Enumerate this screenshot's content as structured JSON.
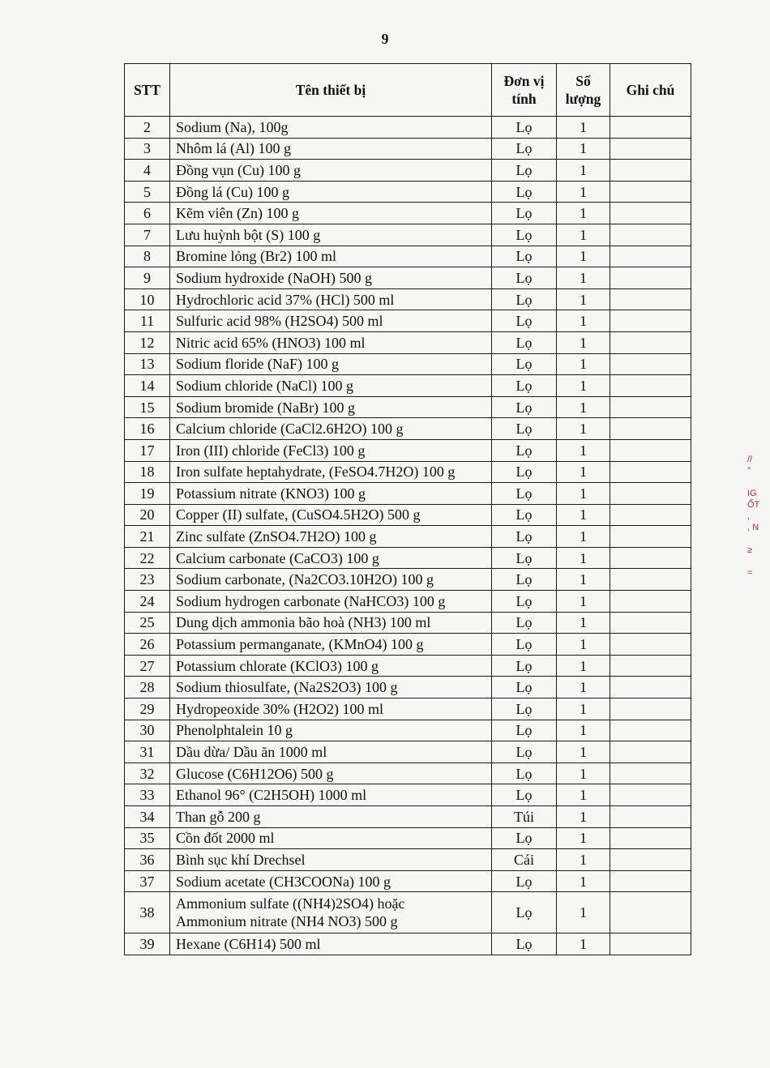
{
  "page_number": "9",
  "table": {
    "headers": {
      "stt": "STT",
      "name": "Tên thiết bị",
      "unit": "Đơn vị tính",
      "qty": "Số lượng",
      "note": "Ghi chú"
    },
    "rows": [
      {
        "stt": "2",
        "name": "Sodium (Na), 100g",
        "unit": "Lọ",
        "qty": "1",
        "note": ""
      },
      {
        "stt": "3",
        "name": "Nhôm lá (Al) 100 g",
        "unit": "Lọ",
        "qty": "1",
        "note": ""
      },
      {
        "stt": "4",
        "name": "Đồng vụn (Cu) 100 g",
        "unit": "Lọ",
        "qty": "1",
        "note": ""
      },
      {
        "stt": "5",
        "name": "Đồng lá (Cu) 100 g",
        "unit": "Lọ",
        "qty": "1",
        "note": ""
      },
      {
        "stt": "6",
        "name": "Kẽm viên (Zn) 100 g",
        "unit": "Lọ",
        "qty": "1",
        "note": ""
      },
      {
        "stt": "7",
        "name": "Lưu huỳnh bột (S) 100 g",
        "unit": "Lọ",
        "qty": "1",
        "note": ""
      },
      {
        "stt": "8",
        "name": "Bromine lỏng (Br2) 100 ml",
        "unit": "Lọ",
        "qty": "1",
        "note": ""
      },
      {
        "stt": "9",
        "name": "Sodium hydroxide (NaOH) 500 g",
        "unit": "Lọ",
        "qty": "1",
        "note": ""
      },
      {
        "stt": "10",
        "name": "Hydrochloric acid 37% (HCl) 500 ml",
        "unit": "Lọ",
        "qty": "1",
        "note": ""
      },
      {
        "stt": "11",
        "name": "Sulfuric acid 98% (H2SO4) 500 ml",
        "unit": "Lọ",
        "qty": "1",
        "note": ""
      },
      {
        "stt": "12",
        "name": "Nitric acid 65% (HNO3) 100 ml",
        "unit": "Lọ",
        "qty": "1",
        "note": ""
      },
      {
        "stt": "13",
        "name": "Sodium floride (NaF) 100 g",
        "unit": "Lọ",
        "qty": "1",
        "note": ""
      },
      {
        "stt": "14",
        "name": "Sodium chloride (NaCl) 100 g",
        "unit": "Lọ",
        "qty": "1",
        "note": ""
      },
      {
        "stt": "15",
        "name": "Sodium bromide (NaBr) 100 g",
        "unit": "Lọ",
        "qty": "1",
        "note": ""
      },
      {
        "stt": "16",
        "name": "Calcium chloride (CaCl2.6H2O) 100 g",
        "unit": "Lọ",
        "qty": "1",
        "note": ""
      },
      {
        "stt": "17",
        "name": "Iron (III) chloride (FeCl3) 100 g",
        "unit": "Lọ",
        "qty": "1",
        "note": ""
      },
      {
        "stt": "18",
        "name": "Iron sulfate heptahydrate, (FeSO4.7H2O) 100 g",
        "unit": "Lọ",
        "qty": "1",
        "note": ""
      },
      {
        "stt": "19",
        "name": "Potassium nitrate (KNO3) 100 g",
        "unit": "Lọ",
        "qty": "1",
        "note": ""
      },
      {
        "stt": "20",
        "name": "Copper (II) sulfate, (CuSO4.5H2O) 500 g",
        "unit": "Lọ",
        "qty": "1",
        "note": ""
      },
      {
        "stt": "21",
        "name": "Zinc sulfate (ZnSO4.7H2O) 100 g",
        "unit": "Lọ",
        "qty": "1",
        "note": ""
      },
      {
        "stt": "22",
        "name": "Calcium carbonate (CaCO3) 100 g",
        "unit": "Lọ",
        "qty": "1",
        "note": ""
      },
      {
        "stt": "23",
        "name": "Sodium carbonate, (Na2CO3.10H2O) 100 g",
        "unit": "Lọ",
        "qty": "1",
        "note": ""
      },
      {
        "stt": "24",
        "name": "Sodium hydrogen carbonate (NaHCO3) 100 g",
        "unit": "Lọ",
        "qty": "1",
        "note": ""
      },
      {
        "stt": "25",
        "name": "Dung dịch ammonia bão hoà (NH3) 100 ml",
        "unit": "Lọ",
        "qty": "1",
        "note": ""
      },
      {
        "stt": "26",
        "name": "Potassium permanganate, (KMnO4) 100 g",
        "unit": "Lọ",
        "qty": "1",
        "note": ""
      },
      {
        "stt": "27",
        "name": "Potassium chlorate (KClO3) 100 g",
        "unit": "Lọ",
        "qty": "1",
        "note": ""
      },
      {
        "stt": "28",
        "name": "Sodium thiosulfate, (Na2S2O3) 100 g",
        "unit": "Lọ",
        "qty": "1",
        "note": ""
      },
      {
        "stt": "29",
        "name": "Hydropeoxide 30% (H2O2) 100 ml",
        "unit": "Lọ",
        "qty": "1",
        "note": ""
      },
      {
        "stt": "30",
        "name": "Phenolphtalein 10 g",
        "unit": "Lọ",
        "qty": "1",
        "note": ""
      },
      {
        "stt": "31",
        "name": "Dầu dừa/ Dầu ăn 1000 ml",
        "unit": "Lọ",
        "qty": "1",
        "note": ""
      },
      {
        "stt": "32",
        "name": "Glucose (C6H12O6) 500 g",
        "unit": "Lọ",
        "qty": "1",
        "note": ""
      },
      {
        "stt": "33",
        "name": "Ethanol 96° (C2H5OH) 1000 ml",
        "unit": "Lọ",
        "qty": "1",
        "note": ""
      },
      {
        "stt": "34",
        "name": "Than gỗ 200 g",
        "unit": "Túi",
        "qty": "1",
        "note": ""
      },
      {
        "stt": "35",
        "name": "Cồn đốt 2000 ml",
        "unit": "Lọ",
        "qty": "1",
        "note": ""
      },
      {
        "stt": "36",
        "name": "Bình sục khí Drechsel",
        "unit": "Cái",
        "qty": "1",
        "note": ""
      },
      {
        "stt": "37",
        "name": "Sodium acetate (CH3COONa) 100 g",
        "unit": "Lọ",
        "qty": "1",
        "note": ""
      },
      {
        "stt": "38",
        "name": "Ammonium sulfate ((NH4)2SO4) hoặc",
        "name2": "Ammonium nitrate (NH4 NO3) 500 g",
        "unit": "Lọ",
        "qty": "1",
        "note": ""
      },
      {
        "stt": "39",
        "name": "Hexane (C6H14) 500 ml",
        "unit": "Lọ",
        "qty": "1",
        "note": ""
      }
    ]
  },
  "stamp_fragment": "//° IG ỐT , N",
  "colors": {
    "ink": "#111111",
    "paper": "#f6f6f4",
    "stamp": "#c0262c"
  }
}
